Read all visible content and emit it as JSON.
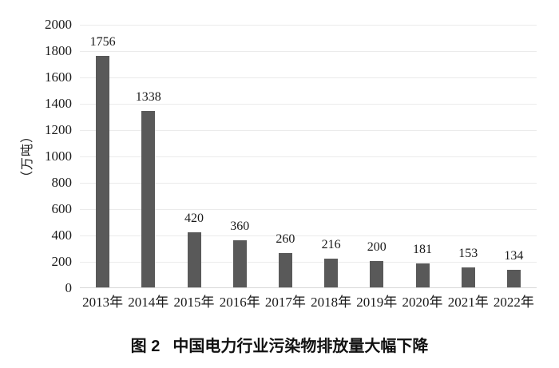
{
  "figure": {
    "caption_label": "图 2",
    "caption_text": "中国电力行业污染物排放量大幅下降"
  },
  "chart_data": {
    "type": "bar",
    "title": "图 2 中国电力行业污染物排放量大幅下降",
    "categories": [
      "2013年",
      "2014年",
      "2015年",
      "2016年",
      "2017年",
      "2018年",
      "2019年",
      "2020年",
      "2021年",
      "2022年"
    ],
    "values": [
      1756,
      1338,
      420,
      360,
      260,
      216,
      200,
      181,
      153,
      134
    ],
    "xlabel": "",
    "ylabel": "（万吨）",
    "ylim": [
      0,
      2000
    ],
    "ytick_step": 200,
    "ytick_labels": [
      "0",
      "200",
      "400",
      "600",
      "800",
      "1000",
      "1200",
      "1400",
      "1600",
      "1800",
      "2000"
    ],
    "grid": true,
    "legend_position": "none",
    "bar_color": "#595959",
    "gridline_color": "#ebebeb",
    "axis_line_color": "#d6d6d6",
    "text_color": "#1a1a1a",
    "background": "#ffffff"
  }
}
